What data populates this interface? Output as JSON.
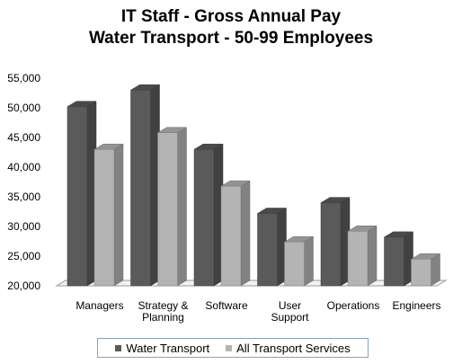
{
  "chart_data": {
    "type": "bar",
    "title": "IT Staff - Gross Annual Pay",
    "subtitle": "Water Transport - 50-99 Employees",
    "categories": [
      [
        "Managers"
      ],
      [
        "Strategy &",
        "Planning"
      ],
      [
        "Software"
      ],
      [
        "User",
        "Support"
      ],
      [
        "Operations"
      ],
      [
        "Engineers"
      ]
    ],
    "series": [
      {
        "name": "Water Transport",
        "color": "#5a5a5a",
        "values": [
          50200,
          53000,
          43000,
          32200,
          34000,
          28200
        ]
      },
      {
        "name": "All Transport Services",
        "color": "#b4b4b4",
        "values": [
          43000,
          45800,
          36800,
          27400,
          29200,
          24500
        ]
      }
    ],
    "ylim": [
      20000,
      55000
    ],
    "yticks": [
      "20,000",
      "25,000",
      "30,000",
      "35,000",
      "40,000",
      "45,000",
      "50,000",
      "55,000"
    ],
    "ytick_values": [
      20000,
      25000,
      30000,
      35000,
      40000,
      45000,
      50000,
      55000
    ],
    "grid": false,
    "legend_position": "bottom",
    "style": "3d"
  }
}
